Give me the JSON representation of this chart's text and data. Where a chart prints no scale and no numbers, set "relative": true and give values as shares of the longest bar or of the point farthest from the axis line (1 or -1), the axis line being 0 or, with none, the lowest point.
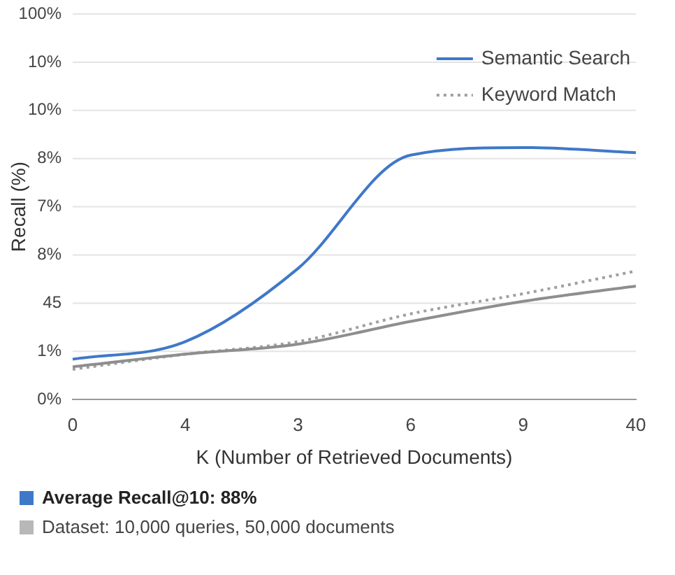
{
  "chart_data": {
    "type": "line",
    "relative": true,
    "xlabel": "K (Number of Retrieved Documents)",
    "ylabel": "Recall (%)",
    "categories": [
      "0",
      "4",
      "3",
      "6",
      "9",
      "40"
    ],
    "series": [
      {
        "name": "Semantic Search",
        "color": "#3f78c8",
        "line_style": "solid",
        "values": [
          0.16,
          0.23,
          0.52,
          0.97,
          1,
          0.98
        ]
      },
      {
        "color": "#8e8e8e",
        "line_style": "solid",
        "values": [
          0.13,
          0.18,
          0.22,
          0.31,
          0.39,
          0.45
        ]
      },
      {
        "name": "Keyword Match",
        "color": "#a0a0a0",
        "line_style": "dotted",
        "values": [
          0.12,
          0.18,
          0.23,
          0.34,
          0.42,
          0.51
        ]
      }
    ],
    "grid": "y",
    "legend": "top right",
    "marker": "none",
    "annotations": [
      "100%",
      "10%",
      "10%",
      "8%",
      "7%",
      "8%",
      "45",
      "1%",
      "0%",
      "Average Recall@10: 88%",
      "Dataset: 10,000 queries, 50,000 documents"
    ]
  }
}
